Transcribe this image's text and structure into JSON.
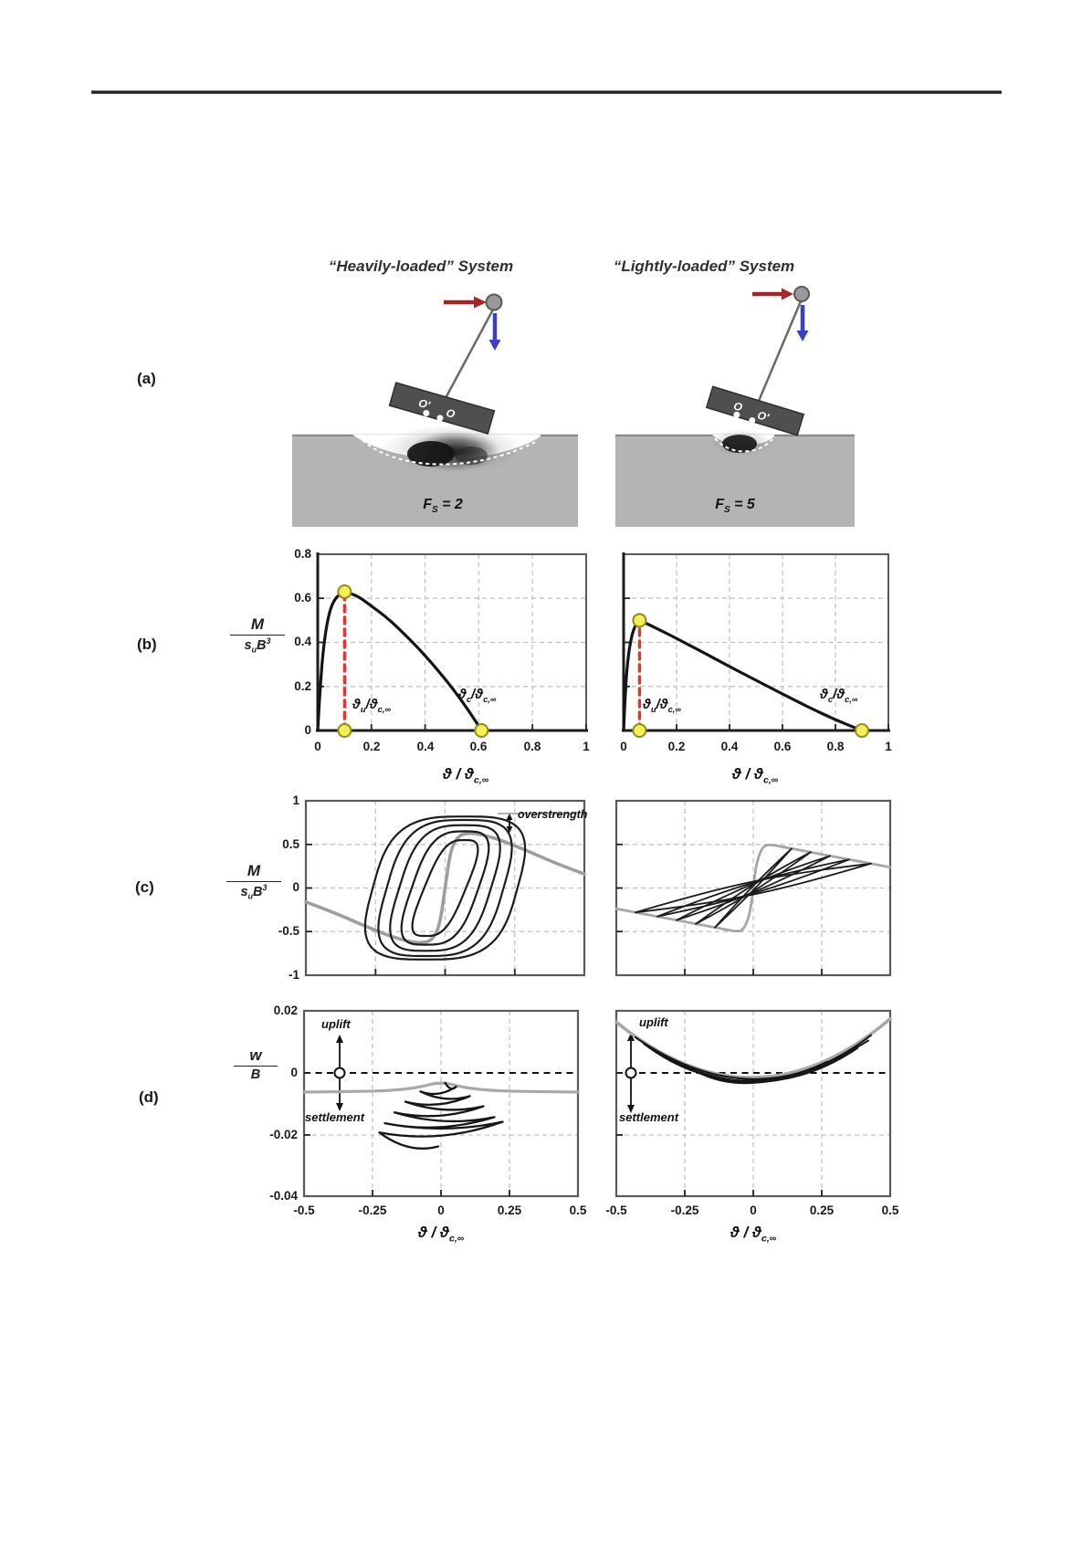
{
  "header": {
    "title_left": "“Heavily-loaded” System",
    "title_right": "“Lightly-loaded” System"
  },
  "panel_labels": {
    "a": "(a)",
    "b": "(b)",
    "c": "(c)",
    "d": "(d)"
  },
  "panel_a": {
    "fs": {
      "F": "F",
      "sub": "S",
      "value_left": "= 2",
      "value_right": "= 5"
    },
    "foundation_points": {
      "o_prime": "O′",
      "o": "O"
    },
    "colors": {
      "soil": "#b4b4b4",
      "foundation": "#4f4f4f",
      "mass": "#999999",
      "horizontal_arrow": "#a32525",
      "vertical_arrow": "#3a3fc4"
    }
  },
  "symbols": {
    "theta": "ϑ",
    "slash": "/",
    "sub_u": "u",
    "sub_cinf": "c,∞",
    "theta_over_theta": "ϑ / ϑ",
    "moment_num": "M",
    "s": "s",
    "B": "B",
    "exp3": "3",
    "w": "w"
  },
  "panel_b": {
    "left": {
      "x_ticks": [
        "0",
        "0.2",
        "0.4",
        "0.6",
        "0.8",
        "1"
      ],
      "y_ticks": [
        "0.8",
        "0.6",
        "0.4",
        "0.2",
        "0"
      ]
    },
    "right": {
      "x_ticks": [
        "0",
        "0.2",
        "0.4",
        "0.6",
        "0.8",
        "1"
      ]
    }
  },
  "panel_c": {
    "y_ticks": [
      "1",
      "0.5",
      "0",
      "-0.5",
      "-1"
    ],
    "overstrength": "overstrength"
  },
  "panel_d": {
    "left": {
      "x_ticks": [
        "-0.5",
        "-0.25",
        "0",
        "0.25",
        "0.5"
      ],
      "y_ticks": [
        "0.02",
        "0",
        "-0.02",
        "-0.04"
      ]
    },
    "right": {
      "x_ticks": [
        "-0.5",
        "-0.25",
        "0",
        "0.25",
        "0.5"
      ]
    },
    "uplift": "uplift",
    "settlement": "settlement"
  },
  "chart_data": [
    {
      "id": "pushover_heavy",
      "type": "line",
      "title": "Monotonic pushover, heavily-loaded (FS = 2)",
      "xlabel": "ϑ / ϑc,∞",
      "ylabel": "M / (su B³)",
      "xlim": [
        0,
        1
      ],
      "ylim": [
        0,
        0.8
      ],
      "grid": true,
      "key_points": {
        "theta_u": 0.1,
        "M_u": 0.63,
        "theta_c": 0.61
      },
      "curve": [
        [
          0,
          0
        ],
        [
          0.01,
          0.22
        ],
        [
          0.025,
          0.42
        ],
        [
          0.045,
          0.55
        ],
        [
          0.07,
          0.61
        ],
        [
          0.1,
          0.63
        ],
        [
          0.15,
          0.61
        ],
        [
          0.2,
          0.565
        ],
        [
          0.25,
          0.52
        ],
        [
          0.3,
          0.465
        ],
        [
          0.35,
          0.405
        ],
        [
          0.4,
          0.34
        ],
        [
          0.45,
          0.27
        ],
        [
          0.5,
          0.195
        ],
        [
          0.56,
          0.095
        ],
        [
          0.61,
          0
        ]
      ],
      "colors": {
        "curve": "#141414",
        "drop_line": "#e23434",
        "marker": "#f4ef56"
      }
    },
    {
      "id": "pushover_light",
      "type": "line",
      "title": "Monotonic pushover, lightly-loaded (FS = 5)",
      "xlabel": "ϑ / ϑc,∞",
      "ylabel": "M / (su B³)",
      "xlim": [
        0,
        1
      ],
      "ylim": [
        0,
        0.8
      ],
      "grid": true,
      "key_points": {
        "theta_u": 0.06,
        "M_u": 0.5,
        "theta_c": 0.9
      },
      "curve": [
        [
          0,
          0
        ],
        [
          0.006,
          0.16
        ],
        [
          0.015,
          0.32
        ],
        [
          0.03,
          0.43
        ],
        [
          0.045,
          0.48
        ],
        [
          0.06,
          0.5
        ],
        [
          0.1,
          0.478
        ],
        [
          0.15,
          0.448
        ],
        [
          0.2,
          0.418
        ],
        [
          0.3,
          0.355
        ],
        [
          0.4,
          0.29
        ],
        [
          0.5,
          0.228
        ],
        [
          0.6,
          0.166
        ],
        [
          0.7,
          0.105
        ],
        [
          0.8,
          0.048
        ],
        [
          0.9,
          0
        ]
      ],
      "colors": {
        "curve": "#141414",
        "drop_line": "#e23434",
        "marker": "#f4ef56"
      }
    },
    {
      "id": "hysteresis_heavy",
      "type": "line",
      "title": "Cyclic moment-rotation, heavily-loaded",
      "xlim": [
        -0.5,
        0.5
      ],
      "ylim": [
        -1,
        1
      ],
      "grid": true,
      "annotation": "overstrength",
      "backbone": [
        [
          -0.5,
          -0.16
        ],
        [
          -0.4,
          -0.28
        ],
        [
          -0.3,
          -0.42
        ],
        [
          -0.2,
          -0.55
        ],
        [
          -0.13,
          -0.615
        ],
        [
          -0.09,
          -0.63
        ],
        [
          -0.05,
          -0.61
        ],
        [
          -0.02,
          -0.45
        ],
        [
          0,
          0
        ],
        [
          0.02,
          0.45
        ],
        [
          0.05,
          0.61
        ],
        [
          0.09,
          0.63
        ],
        [
          0.13,
          0.615
        ],
        [
          0.2,
          0.55
        ],
        [
          0.3,
          0.42
        ],
        [
          0.4,
          0.28
        ],
        [
          0.5,
          0.16
        ]
      ],
      "loops": {
        "shear": 0.07,
        "exponent": 0.6,
        "half_sizes": [
          [
            0.075,
            0.55
          ],
          [
            0.12,
            0.65
          ],
          [
            0.165,
            0.72
          ],
          [
            0.21,
            0.78
          ],
          [
            0.26,
            0.82
          ]
        ]
      },
      "colors": {
        "loops": "#1c1c1c",
        "backbone": "#9e9e9e"
      }
    },
    {
      "id": "hysteresis_light",
      "type": "line",
      "title": "Cyclic moment-rotation, lightly-loaded",
      "xlim": [
        -0.5,
        0.5
      ],
      "ylim": [
        -1,
        1
      ],
      "grid": true,
      "backbone": [
        [
          -0.5,
          -0.238
        ],
        [
          -0.35,
          -0.327
        ],
        [
          -0.2,
          -0.416
        ],
        [
          -0.1,
          -0.476
        ],
        [
          -0.06,
          -0.5
        ],
        [
          -0.035,
          -0.48
        ],
        [
          -0.012,
          -0.3
        ],
        [
          0,
          0
        ],
        [
          0.012,
          0.3
        ],
        [
          0.035,
          0.48
        ],
        [
          0.06,
          0.5
        ],
        [
          0.1,
          0.476
        ],
        [
          0.2,
          0.416
        ],
        [
          0.35,
          0.327
        ],
        [
          0.5,
          0.238
        ]
      ],
      "loop_tips": [
        [
          0.14,
          0.452
        ],
        [
          0.21,
          0.411
        ],
        [
          0.28,
          0.369
        ],
        [
          0.35,
          0.327
        ],
        [
          0.43,
          0.28
        ]
      ],
      "colors": {
        "loops": "#1c1c1c",
        "backbone": "#a6a6a6"
      }
    },
    {
      "id": "settlement_heavy",
      "type": "line",
      "title": "Settlement-rotation, heavily-loaded",
      "xlabel": "ϑ / ϑc,∞",
      "ylabel": "w / B",
      "xlim": [
        -0.5,
        0.5
      ],
      "ylim": [
        -0.04,
        0.02
      ],
      "grid": true,
      "annotations": [
        "uplift",
        "settlement"
      ],
      "surface": [
        [
          -0.5,
          -0.0062
        ],
        [
          -0.3,
          -0.006
        ],
        [
          -0.18,
          -0.0057
        ],
        [
          -0.08,
          -0.0047
        ],
        [
          0,
          -0.0028
        ],
        [
          0.08,
          -0.0047
        ],
        [
          0.18,
          -0.0057
        ],
        [
          0.3,
          -0.006
        ],
        [
          0.5,
          -0.0062
        ]
      ],
      "spiral_tips": [
        [
          0.015,
          -0.0032
        ],
        [
          0.055,
          -0.0045
        ],
        [
          -0.075,
          -0.006
        ],
        [
          0.105,
          -0.0075
        ],
        [
          -0.13,
          -0.0093
        ],
        [
          0.155,
          -0.0108
        ],
        [
          -0.17,
          -0.0128
        ],
        [
          0.195,
          -0.0143
        ],
        [
          -0.205,
          -0.0163
        ],
        [
          0.225,
          -0.0158
        ],
        [
          -0.225,
          -0.0193
        ],
        [
          -0.01,
          -0.0238
        ]
      ],
      "colors": {
        "path": "#161616",
        "surface": "#a9a9a9"
      }
    },
    {
      "id": "settlement_light",
      "type": "line",
      "title": "Settlement-rotation, lightly-loaded",
      "xlabel": "ϑ / ϑc,∞",
      "ylabel": "w / B",
      "xlim": [
        -0.5,
        0.5
      ],
      "ylim": [
        -0.04,
        0.02
      ],
      "grid": true,
      "annotations": [
        "uplift",
        "settlement"
      ],
      "parabola": {
        "ends": [
          [
            -0.5,
            0.0165
          ],
          [
            0.5,
            0.0175
          ]
        ],
        "vertex": [
          0,
          -0.0015
        ]
      },
      "strands": [
        {
          "ends": [
            [
              -0.43,
              0.0115
            ],
            [
              0.43,
              0.0122
            ]
          ],
          "vertex": [
            0.01,
            -0.002
          ]
        },
        {
          "ends": [
            [
              -0.4,
              0.0095
            ],
            [
              0.42,
              0.0105
            ]
          ],
          "vertex": [
            -0.012,
            -0.0025
          ]
        },
        {
          "ends": [
            [
              -0.36,
              0.007
            ],
            [
              0.38,
              0.008
            ]
          ],
          "vertex": [
            0.018,
            -0.0028
          ]
        },
        {
          "ends": [
            [
              -0.3,
              0.0045
            ],
            [
              0.33,
              0.0056
            ]
          ],
          "vertex": [
            0,
            -0.0031
          ]
        },
        {
          "ends": [
            [
              -0.245,
              0.0026
            ],
            [
              0.27,
              0.0036
            ]
          ],
          "vertex": [
            -0.02,
            -0.0033
          ]
        }
      ],
      "colors": {
        "path": "#161616",
        "surface": "#a9a9a9"
      }
    }
  ]
}
